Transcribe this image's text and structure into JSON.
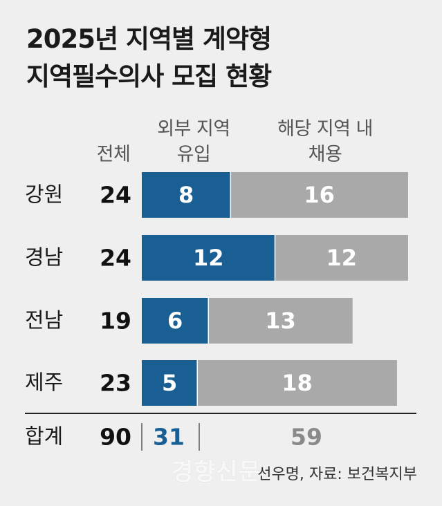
{
  "title_line1": "2025년 지역별 계약형",
  "title_line2": "지역필수의사 모집 현황",
  "headers": {
    "total": "전체",
    "external_line1": "외부 지역",
    "external_line2": "유입",
    "internal_line1": "해당 지역 내",
    "internal_line2": "채용"
  },
  "colors": {
    "external": "#1a5f93",
    "internal": "#a9a9a9",
    "sum_external": "#1a5f93",
    "sum_internal": "#8a8a8a"
  },
  "chart_data": {
    "type": "bar",
    "stacked": true,
    "orientation": "horizontal",
    "categories": [
      "강원",
      "경남",
      "전남",
      "제주"
    ],
    "totals": [
      24,
      24,
      19,
      23
    ],
    "series": [
      {
        "name": "외부 지역 유입",
        "values": [
          8,
          12,
          6,
          5
        ]
      },
      {
        "name": "해당 지역 내 채용",
        "values": [
          16,
          12,
          13,
          18
        ]
      }
    ]
  },
  "summary": {
    "label": "합계",
    "total": "90",
    "external": "31",
    "internal": "59"
  },
  "source": "선우명, 자료: 보건복지부",
  "watermark": "경향신문"
}
